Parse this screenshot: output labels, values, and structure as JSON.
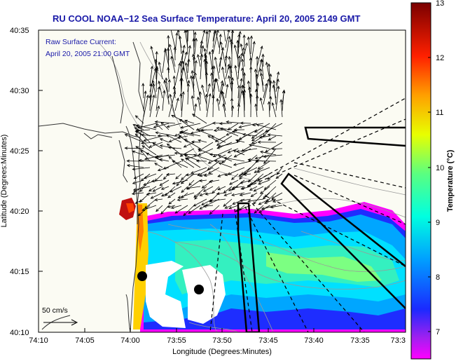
{
  "title": "RU COOL  NOAA−12  Sea Surface Temperature:  April 20, 2005 2149 GMT",
  "annotation": {
    "line1": "Raw Surface Current:",
    "line2": "April 20, 2005 21:00 GMT"
  },
  "x_axis": {
    "label": "Longitude (Degrees:Minutes)",
    "ticks": [
      "74:10",
      "74:05",
      "74:00",
      "73:55",
      "73:50",
      "73:45",
      "73:40",
      "73:35",
      "73:3"
    ]
  },
  "y_axis": {
    "label": "Latitude (Degrees:Minutes)",
    "ticks": [
      "40:35",
      "40:30",
      "40:25",
      "40:20",
      "40:15",
      "40:10"
    ]
  },
  "colorbar": {
    "label": "Temperature (°C)",
    "ticks": [
      "13",
      "12",
      "11",
      "10",
      "9",
      "8",
      "7"
    ],
    "range": [
      6.5,
      13
    ],
    "colormap": "jet"
  },
  "scale_label": "50 cm/s",
  "colors": {
    "title": "#1a1aa8",
    "land": "#fbfbf3",
    "cloud_mask": "#ffffff",
    "contour": "#9a9a9a"
  }
}
